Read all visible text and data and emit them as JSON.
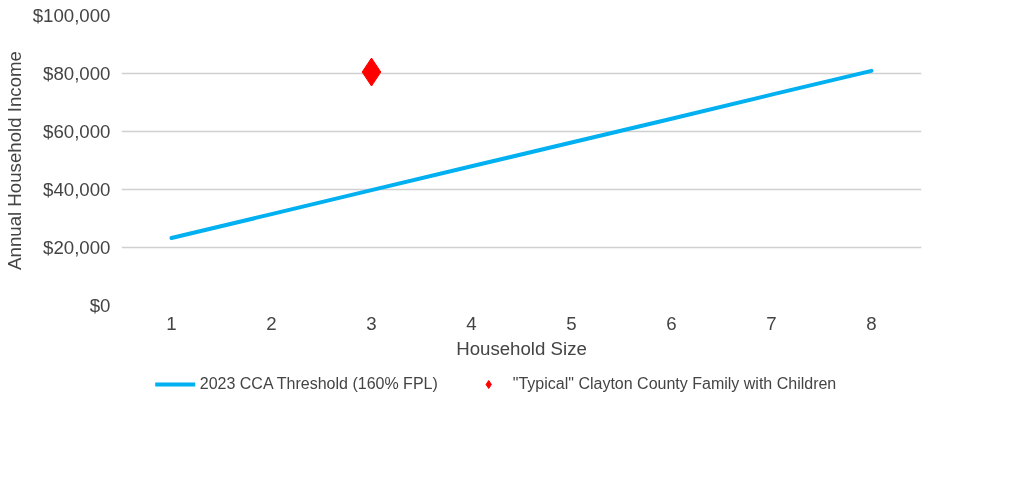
{
  "chart_data": {
    "type": "line",
    "xlabel": "Household Size",
    "ylabel": "Annual Household Income",
    "x": [
      1,
      2,
      3,
      4,
      5,
      6,
      7,
      8
    ],
    "xlim": [
      0.5,
      8.5
    ],
    "xticks": [
      1,
      2,
      3,
      4,
      5,
      6,
      7,
      8
    ],
    "ylim": [
      0,
      100000
    ],
    "yticks": [
      {
        "value": 0,
        "label": "$0"
      },
      {
        "value": 20000,
        "label": "$20,000"
      },
      {
        "value": 40000,
        "label": "$40,000"
      },
      {
        "value": 60000,
        "label": "$60,000"
      },
      {
        "value": 80000,
        "label": "$80,000"
      },
      {
        "value": 100000,
        "label": "$100,000"
      }
    ],
    "series": [
      {
        "name": "2023 CCA Threshold (160% FPL)",
        "color": "#00b0f0",
        "marker": "none",
        "values": [
          23300,
          31500,
          39800,
          48000,
          56200,
          64400,
          72700,
          80900
        ]
      },
      {
        "name": "\"Typical\" Clayton County Family with Children",
        "type": "scatter",
        "color": "#ff0000",
        "marker": "diamond",
        "x": [
          3
        ],
        "values": [
          80500
        ]
      }
    ],
    "grid": "y",
    "legend": "bottom"
  }
}
